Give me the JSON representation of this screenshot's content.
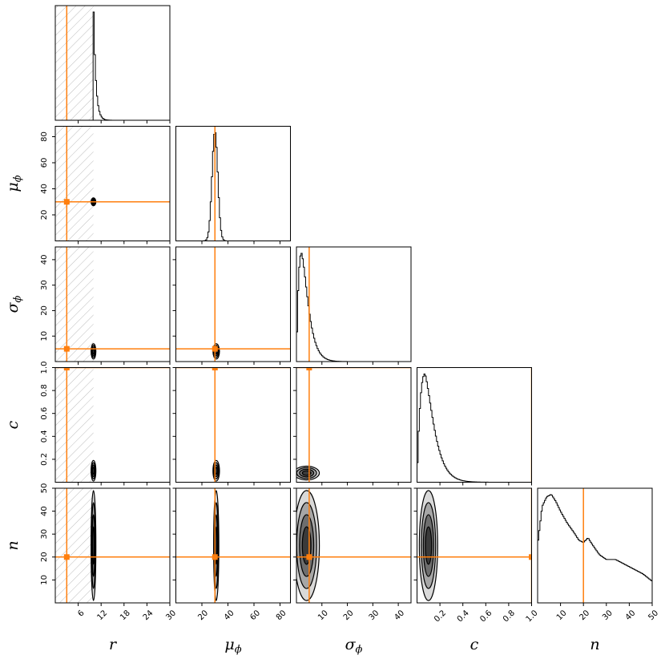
{
  "chart_data": {
    "type": "corner",
    "parameters": [
      {
        "key": "r",
        "label": "r",
        "sub": "",
        "range": [
          0,
          30
        ],
        "ticks": [
          6,
          12,
          18,
          24,
          30
        ],
        "truth": 3
      },
      {
        "key": "mu_phi",
        "label": "μ",
        "sub": "ϕ",
        "range": [
          0,
          88
        ],
        "ticks": [
          20,
          40,
          60,
          80
        ],
        "truth": 30
      },
      {
        "key": "sigma_phi",
        "label": "σ",
        "sub": "ϕ",
        "range": [
          0,
          45
        ],
        "ticks": [
          10,
          20,
          30,
          40
        ],
        "truth": 5
      },
      {
        "key": "c",
        "label": "c",
        "sub": "",
        "range": [
          0,
          1.0
        ],
        "ticks": [
          0.2,
          0.4,
          0.6,
          0.8,
          1.0
        ],
        "tick_labels": [
          "0.2",
          "0.4",
          "0.6",
          "0.8",
          "1.0"
        ],
        "truth": 1.0
      },
      {
        "key": "n",
        "label": "n",
        "sub": "",
        "range": [
          0,
          50
        ],
        "ticks": [
          10,
          20,
          30,
          40,
          50
        ],
        "truth": 20
      }
    ],
    "excluded_region": {
      "parameter": "r",
      "range": [
        0,
        10
      ],
      "style": "hatched"
    },
    "truth_color": "#ff7f0e",
    "posterior_color": "#000000",
    "marginals": [
      {
        "param": "r",
        "peak": 10,
        "width_low": 0.05,
        "width_high": 0.6
      },
      {
        "param": "mu_phi",
        "mean": 30,
        "sd": 2.2
      },
      {
        "param": "sigma_phi",
        "mode": 2,
        "scale": 5
      },
      {
        "param": "c",
        "mode": 0.07,
        "scale": 0.08
      },
      {
        "param": "n",
        "points": [
          [
            0,
            24
          ],
          [
            2,
            40
          ],
          [
            4,
            44
          ],
          [
            6,
            45
          ],
          [
            8,
            42
          ],
          [
            10,
            38
          ],
          [
            13,
            33
          ],
          [
            16,
            29
          ],
          [
            18,
            26
          ],
          [
            20,
            25
          ],
          [
            22,
            27
          ],
          [
            24,
            24
          ],
          [
            27,
            20
          ],
          [
            30,
            18
          ],
          [
            34,
            18
          ],
          [
            38,
            16
          ],
          [
            42,
            14
          ],
          [
            46,
            12
          ],
          [
            50,
            9
          ]
        ]
      }
    ],
    "contours_2d": [
      {
        "x": "r",
        "y": "mu_phi",
        "center": [
          10,
          30
        ],
        "spread": [
          0.3,
          3
        ]
      },
      {
        "x": "r",
        "y": "sigma_phi",
        "center": [
          10,
          4
        ],
        "spread": [
          0.3,
          3
        ]
      },
      {
        "x": "mu_phi",
        "y": "sigma_phi",
        "center": [
          31,
          4
        ],
        "spread": [
          2.5,
          3
        ]
      },
      {
        "x": "r",
        "y": "c",
        "center": [
          10,
          0.1
        ],
        "spread": [
          0.3,
          0.09
        ]
      },
      {
        "x": "mu_phi",
        "y": "c",
        "center": [
          31,
          0.1
        ],
        "spread": [
          2.5,
          0.09
        ]
      },
      {
        "x": "sigma_phi",
        "y": "c",
        "center": [
          4,
          0.08
        ],
        "spread": [
          5,
          0.06
        ]
      },
      {
        "x": "r",
        "y": "n",
        "center": [
          10,
          25
        ],
        "spread": [
          0.3,
          24
        ]
      },
      {
        "x": "mu_phi",
        "y": "n",
        "center": [
          31,
          25
        ],
        "spread": [
          2.0,
          24
        ]
      },
      {
        "x": "sigma_phi",
        "y": "n",
        "center": [
          4,
          25
        ],
        "spread": [
          5,
          24
        ]
      },
      {
        "x": "c",
        "y": "n",
        "center": [
          0.1,
          25
        ],
        "spread": [
          0.08,
          24
        ]
      }
    ]
  }
}
